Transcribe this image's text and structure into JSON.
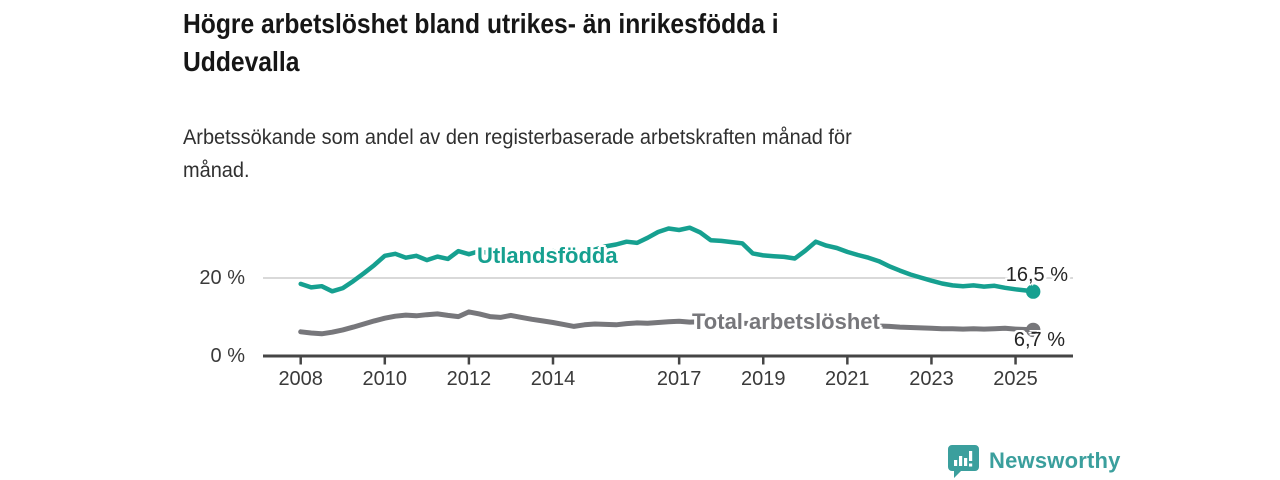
{
  "header": {
    "title": "Högre arbetslöshet bland utrikes- än inrikesfödda i Uddevalla",
    "title_lines": [
      "Högre arbetslöshet bland utrikes- än inrikesfödda i",
      "Uddevalla"
    ],
    "subtitle": "Arbetssökande som andel av den registerbaserade arbetskraften månad för månad.",
    "subtitle_lines": [
      "Arbetssökande som andel av den registerbaserade arbetskraften månad för",
      "månad."
    ]
  },
  "chart_data": {
    "type": "line",
    "title": "Högre arbetslöshet bland utrikes- än inrikesfödda i Uddevalla",
    "xlabel": "",
    "ylabel": "",
    "y_unit": "%",
    "x_range": [
      2007.1,
      2026.4
    ],
    "ylim": [
      0,
      36
    ],
    "grid": "single horizontal gridline at 20 %",
    "legend_position": "inline labels on lines, end values at right",
    "y_ticks": [
      {
        "value": 0,
        "label": "0 %"
      },
      {
        "value": 20,
        "label": "20 %"
      }
    ],
    "x_ticks": [
      {
        "year": 2008,
        "label": "2008"
      },
      {
        "year": 2010,
        "label": "2010"
      },
      {
        "year": 2012,
        "label": "2012"
      },
      {
        "year": 2014,
        "label": "2014"
      },
      {
        "year": 2017,
        "label": "2017"
      },
      {
        "year": 2019,
        "label": "2019"
      },
      {
        "year": 2021,
        "label": "2021"
      },
      {
        "year": 2023,
        "label": "2023"
      },
      {
        "year": 2025,
        "label": "2025"
      }
    ],
    "x": [
      2008,
      2008.25,
      2008.5,
      2008.75,
      2009,
      2009.25,
      2009.5,
      2009.75,
      2010,
      2010.25,
      2010.5,
      2010.75,
      2011,
      2011.25,
      2011.5,
      2011.75,
      2012,
      2012.25,
      2012.5,
      2012.75,
      2013,
      2013.25,
      2013.5,
      2013.75,
      2014,
      2014.25,
      2014.5,
      2014.75,
      2015,
      2015.25,
      2015.5,
      2015.75,
      2016,
      2016.25,
      2016.5,
      2016.75,
      2017,
      2017.25,
      2017.5,
      2017.75,
      2018,
      2018.25,
      2018.5,
      2018.75,
      2019,
      2019.25,
      2019.5,
      2019.75,
      2020,
      2020.25,
      2020.5,
      2020.75,
      2021,
      2021.25,
      2021.5,
      2021.75,
      2022,
      2022.25,
      2022.5,
      2022.75,
      2023,
      2023.25,
      2023.5,
      2023.75,
      2024,
      2024.25,
      2024.5,
      2024.75,
      2025,
      2025.25,
      2025.42
    ],
    "series": [
      {
        "name": "Utlandsfödda",
        "color": "#16a090",
        "end_value": 16.5,
        "end_label": "16,5 %",
        "values": [
          18.5,
          17.6,
          17.9,
          16.6,
          17.4,
          19.2,
          21.2,
          23.3,
          25.7,
          26.2,
          25.2,
          25.7,
          24.6,
          25.5,
          24.9,
          26.9,
          26.1,
          26.9,
          26.3,
          25.8,
          26.4,
          25.9,
          26.6,
          26.1,
          26.9,
          26.3,
          25.9,
          26.6,
          27.3,
          28.1,
          28.6,
          29.3,
          29.0,
          30.3,
          31.8,
          32.7,
          32.3,
          32.9,
          31.7,
          29.7,
          29.5,
          29.2,
          28.9,
          26.3,
          25.8,
          25.6,
          25.4,
          25.0,
          27.0,
          29.3,
          28.3,
          27.7,
          26.7,
          25.9,
          25.2,
          24.3,
          23.0,
          21.9,
          20.9,
          20.1,
          19.3,
          18.6,
          18.1,
          17.9,
          18.1,
          17.8,
          18.0,
          17.5,
          17.1,
          16.8,
          16.5
        ]
      },
      {
        "name": "Total arbetslöshet",
        "color": "#77777b",
        "end_value": 6.7,
        "end_label": "6,7 %",
        "values": [
          6.2,
          5.9,
          5.7,
          6.1,
          6.7,
          7.4,
          8.2,
          9.0,
          9.7,
          10.2,
          10.5,
          10.3,
          10.6,
          10.8,
          10.4,
          10.1,
          11.3,
          10.8,
          10.1,
          9.9,
          10.4,
          9.9,
          9.4,
          9.0,
          8.6,
          8.1,
          7.6,
          8.0,
          8.2,
          8.1,
          8.0,
          8.3,
          8.5,
          8.4,
          8.6,
          8.8,
          8.9,
          8.7,
          8.8,
          8.6,
          8.7,
          8.5,
          8.4,
          8.3,
          8.4,
          8.3,
          8.2,
          8.3,
          8.6,
          9.2,
          9.0,
          8.7,
          8.2,
          8.0,
          7.9,
          7.7,
          7.6,
          7.4,
          7.3,
          7.2,
          7.1,
          7.0,
          7.0,
          6.9,
          7.0,
          6.9,
          7.0,
          7.1,
          6.9,
          6.8,
          6.7
        ]
      }
    ]
  },
  "footer": {
    "brand": "Newsworthy",
    "logo_icon": "newsworthy-bubble-barchart-icon"
  },
  "colors": {
    "background": "#ffffff",
    "title_text": "#161616",
    "subtitle_text": "#303030",
    "axis_text": "#3a3a3a",
    "axis_line": "#454545",
    "gridline": "#d9d9d9",
    "series_utlandsfodda": "#16a090",
    "series_total": "#77777b",
    "value_label_text": "#242424",
    "brand_teal": "#3b9f9d"
  }
}
